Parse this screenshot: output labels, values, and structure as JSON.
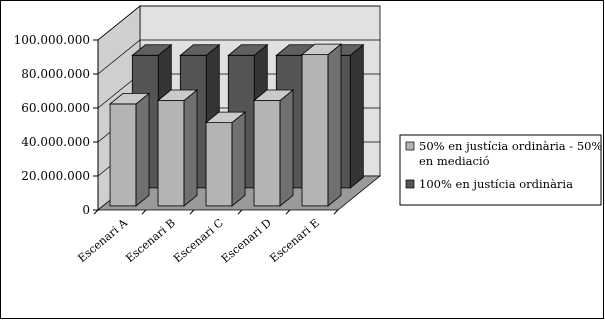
{
  "chart_data": {
    "type": "bar",
    "style": "3d-clustered-column",
    "categories": [
      "Escenari A",
      "Escenari B",
      "Escenari C",
      "Escenari D",
      "Escenari E"
    ],
    "series": [
      {
        "name": "50% en justícia ordinària - 50% en mediació",
        "legend_lines": [
          "50% en justícia ordinària - 50%",
          "en mediació"
        ],
        "color": "#b4b4b4",
        "values": [
          60000000,
          62000000,
          49000000,
          62000000,
          89000000
        ]
      },
      {
        "name": "100% en justícia ordinària",
        "legend_lines": [
          "100% en justícia ordinària"
        ],
        "color": "#555555",
        "values": [
          78000000,
          78000000,
          78000000,
          78000000,
          78000000
        ]
      }
    ],
    "y_ticks": [
      "0",
      "20.000.000",
      "40.000.000",
      "60.000.000",
      "80.000.000",
      "100.000.000"
    ],
    "ylim": [
      0,
      100000000
    ],
    "grid": true,
    "legend_position": "right",
    "wall_color": "#e1e1e1",
    "floor_color": "#9a9a9a"
  }
}
